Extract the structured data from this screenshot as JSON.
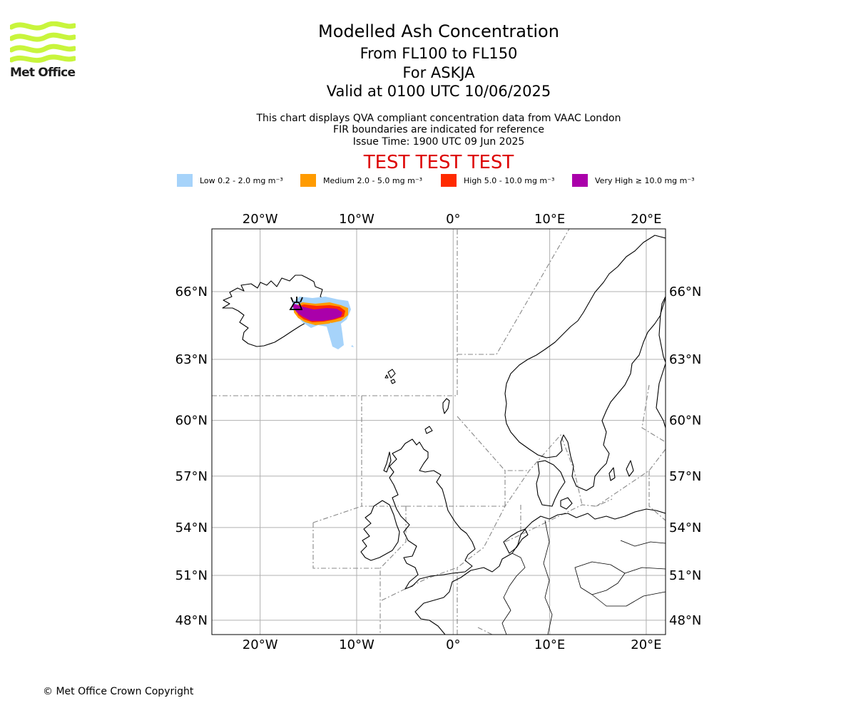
{
  "header": {
    "title": "Modelled Ash Concentration",
    "flight_levels": "From FL100 to FL150",
    "volcano": "For ASKJA",
    "valid_time": "Valid at 0100 UTC 10/06/2025",
    "notes": [
      "This chart displays QVA compliant concentration data from VAAC London",
      "FIR boundaries are indicated for reference",
      "Issue Time: 1900 UTC 09 Jun 2025"
    ],
    "test_banner": "TEST TEST TEST",
    "test_color": "#dd0000"
  },
  "logo": {
    "text": "Met Office",
    "color": "#c8f53c",
    "icon": "met-office-wave-logo"
  },
  "legend": [
    {
      "label": "Low 0.2 - 2.0 mg m⁻³",
      "color": "#a6d3fa"
    },
    {
      "label": "Medium 2.0 - 5.0 mg m⁻³",
      "color": "#ff9b00"
    },
    {
      "label": "High 5.0 - 10.0 mg m⁻³",
      "color": "#ff2a00"
    },
    {
      "label": "Very High ≥ 10.0 mg m⁻³",
      "color": "#aa00aa"
    }
  ],
  "map": {
    "lon_range": [
      -25,
      22
    ],
    "lat_range": [
      47,
      68.5
    ],
    "lon_ticks": [
      {
        "value": -20,
        "label": "20°W"
      },
      {
        "value": -10,
        "label": "10°W"
      },
      {
        "value": 0,
        "label": "0°"
      },
      {
        "value": 10,
        "label": "10°E"
      },
      {
        "value": 20,
        "label": "20°E"
      }
    ],
    "lat_ticks": [
      {
        "value": 66,
        "label": "66°N"
      },
      {
        "value": 63,
        "label": "63°N"
      },
      {
        "value": 60,
        "label": "60°N"
      },
      {
        "value": 57,
        "label": "57°N"
      },
      {
        "value": 54,
        "label": "54°N"
      },
      {
        "value": 51,
        "label": "51°N"
      },
      {
        "value": 48,
        "label": "48°N"
      }
    ],
    "grid": true,
    "volcano_marker": {
      "name": "ASKJA",
      "lon": -16.75,
      "lat": 65.03,
      "icon": "volcano-icon"
    }
  },
  "footer": {
    "copyright": "© Met Office Crown Copyright"
  }
}
